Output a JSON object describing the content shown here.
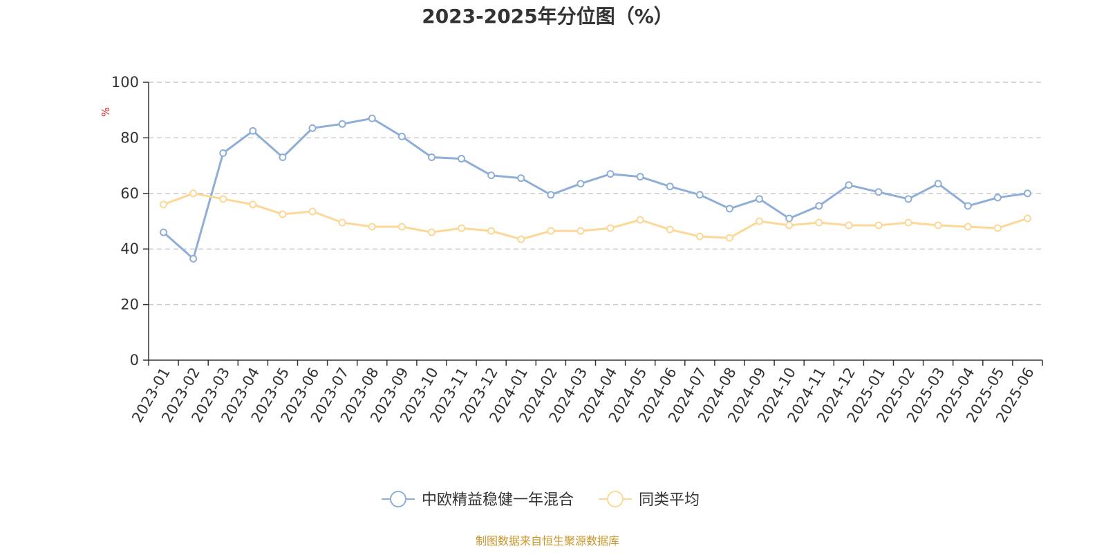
{
  "chart_data": {
    "type": "line",
    "title": "2023-2025年分位图（%）",
    "ylabel": "%",
    "xlabel": "",
    "ylim": [
      0,
      100
    ],
    "yticks": [
      0,
      20,
      40,
      60,
      80,
      100
    ],
    "grid": true,
    "legend_position": "bottom",
    "categories": [
      "2023-01",
      "2023-02",
      "2023-03",
      "2023-04",
      "2023-05",
      "2023-06",
      "2023-07",
      "2023-08",
      "2023-09",
      "2023-10",
      "2023-11",
      "2023-12",
      "2024-01",
      "2024-02",
      "2024-03",
      "2024-04",
      "2024-05",
      "2024-06",
      "2024-07",
      "2024-08",
      "2024-09",
      "2024-10",
      "2024-11",
      "2024-12",
      "2025-01",
      "2025-02",
      "2025-03",
      "2025-04",
      "2025-05",
      "2025-06"
    ],
    "series": [
      {
        "name": "中欧精益稳健一年混合",
        "color": "#8eaed8",
        "values": [
          46.0,
          36.5,
          74.5,
          82.5,
          73.0,
          83.5,
          85.0,
          87.0,
          80.5,
          73.0,
          72.5,
          66.5,
          65.5,
          59.5,
          63.5,
          67.0,
          66.0,
          62.5,
          59.5,
          54.5,
          58.0,
          51.0,
          55.5,
          63.0,
          60.5,
          58.0,
          63.5,
          55.5,
          58.5,
          60.0
        ]
      },
      {
        "name": "同类平均",
        "color": "#fcd796",
        "values": [
          56.0,
          60.0,
          58.0,
          56.0,
          52.5,
          53.5,
          49.5,
          48.0,
          48.0,
          46.0,
          47.5,
          46.5,
          43.5,
          46.5,
          46.5,
          47.5,
          50.5,
          47.0,
          44.5,
          44.0,
          50.0,
          48.5,
          49.5,
          48.5,
          48.5,
          49.5,
          48.5,
          48.0,
          47.5,
          51.0
        ]
      }
    ],
    "source": "制图数据来自恒生聚源数据库"
  }
}
